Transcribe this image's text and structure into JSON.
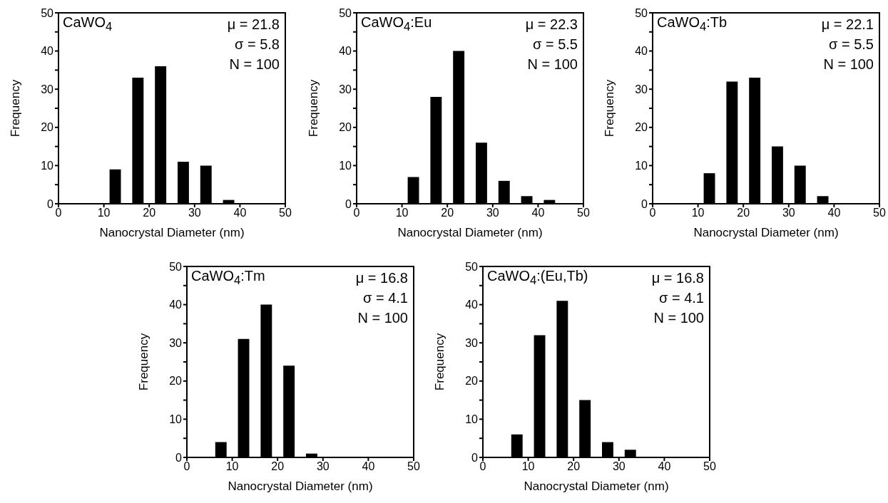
{
  "chart_data": [
    {
      "type": "histogram",
      "title": "CaWO$_{4}$",
      "xlabel": "Nanocrystal Diameter (nm)",
      "ylabel": "Frequency",
      "annotations": [
        "μ = 21.8",
        "σ = 5.8",
        "N = 100"
      ],
      "bins": [
        0,
        5,
        10,
        15,
        20,
        25,
        30,
        35,
        40,
        45,
        50
      ],
      "values": [
        0,
        0,
        9,
        33,
        36,
        11,
        10,
        1,
        0,
        0
      ],
      "color": "#000000",
      "xlim": [
        0,
        50
      ],
      "xticks": [
        0,
        10,
        20,
        30,
        40,
        50
      ],
      "ylim": [
        0,
        50
      ],
      "yticks": [
        0,
        {
          "value": 5,
          "label": null
        },
        10,
        {
          "value": 15,
          "label": null
        },
        20,
        {
          "value": 25,
          "label": null
        },
        30,
        {
          "value": 35,
          "label": null
        },
        40,
        {
          "value": 45,
          "label": null
        },
        50
      ]
    },
    {
      "type": "histogram",
      "title": "CaWO$_{4}$:Eu",
      "xlabel": "Nanocrystal Diameter (nm)",
      "ylabel": "Frequency",
      "annotations": [
        "μ = 22.3",
        "σ = 5.5",
        "N = 100"
      ],
      "bins": [
        0,
        5,
        10,
        15,
        20,
        25,
        30,
        35,
        40,
        45,
        50
      ],
      "values": [
        0,
        0,
        7,
        28,
        40,
        16,
        6,
        2,
        1,
        0
      ],
      "color": "#000000",
      "xlim": [
        0,
        50
      ],
      "xticks": [
        0,
        10,
        20,
        30,
        40,
        50
      ],
      "ylim": [
        0,
        50
      ],
      "yticks": [
        0,
        {
          "value": 5,
          "label": null
        },
        10,
        {
          "value": 15,
          "label": null
        },
        20,
        {
          "value": 25,
          "label": null
        },
        30,
        {
          "value": 35,
          "label": null
        },
        40,
        {
          "value": 45,
          "label": null
        },
        50
      ]
    },
    {
      "type": "histogram",
      "title": "CaWO$_{4}$:Tb",
      "xlabel": "Nanocrystal Diameter (nm)",
      "ylabel": "Frequency",
      "annotations": [
        "μ = 22.1",
        "σ = 5.5",
        "N = 100"
      ],
      "bins": [
        0,
        5,
        10,
        15,
        20,
        25,
        30,
        35,
        40,
        45,
        50
      ],
      "values": [
        0,
        0,
        8,
        32,
        33,
        15,
        10,
        2,
        0,
        0
      ],
      "color": "#000000",
      "xlim": [
        0,
        50
      ],
      "xticks": [
        0,
        10,
        20,
        30,
        40,
        50
      ],
      "ylim": [
        0,
        50
      ],
      "yticks": [
        0,
        {
          "value": 5,
          "label": null
        },
        10,
        {
          "value": 15,
          "label": null
        },
        20,
        {
          "value": 25,
          "label": null
        },
        30,
        {
          "value": 35,
          "label": null
        },
        40,
        {
          "value": 45,
          "label": null
        },
        50
      ]
    },
    {
      "type": "histogram",
      "title": "CaWO$_{4}$:Tm",
      "xlabel": "Nanocrystal Diameter (nm)",
      "ylabel": "Frequency",
      "annotations": [
        "μ = 16.8",
        "σ = 4.1",
        "N = 100"
      ],
      "bins": [
        0,
        5,
        10,
        15,
        20,
        25,
        30,
        35,
        40,
        45,
        50
      ],
      "values": [
        0,
        4,
        31,
        40,
        24,
        1,
        0,
        0,
        0,
        0
      ],
      "color": "#000000",
      "xlim": [
        0,
        50
      ],
      "xticks": [
        0,
        10,
        20,
        30,
        40,
        50
      ],
      "ylim": [
        0,
        50
      ],
      "yticks": [
        0,
        {
          "value": 5,
          "label": null
        },
        10,
        {
          "value": 15,
          "label": null
        },
        20,
        {
          "value": 25,
          "label": null
        },
        30,
        {
          "value": 35,
          "label": null
        },
        40,
        {
          "value": 45,
          "label": null
        },
        50
      ]
    },
    {
      "type": "histogram",
      "title": "CaWO$_{4}$:(Eu,Tb)",
      "xlabel": "Nanocrystal Diameter (nm)",
      "ylabel": "Frequency",
      "annotations": [
        "μ = 16.8",
        "σ = 4.1",
        "N = 100"
      ],
      "bins": [
        0,
        5,
        10,
        15,
        20,
        25,
        30,
        35,
        40,
        45,
        50
      ],
      "values": [
        0,
        6,
        32,
        41,
        15,
        4,
        2,
        0,
        0,
        0
      ],
      "color": "#000000",
      "xlim": [
        0,
        50
      ],
      "xticks": [
        0,
        10,
        20,
        30,
        40,
        50
      ],
      "ylim": [
        0,
        50
      ],
      "yticks": [
        0,
        {
          "value": 5,
          "label": null
        },
        10,
        {
          "value": 15,
          "label": null
        },
        20,
        {
          "value": 25,
          "label": null
        },
        30,
        {
          "value": 35,
          "label": null
        },
        40,
        {
          "value": 45,
          "label": null
        },
        50
      ]
    }
  ]
}
